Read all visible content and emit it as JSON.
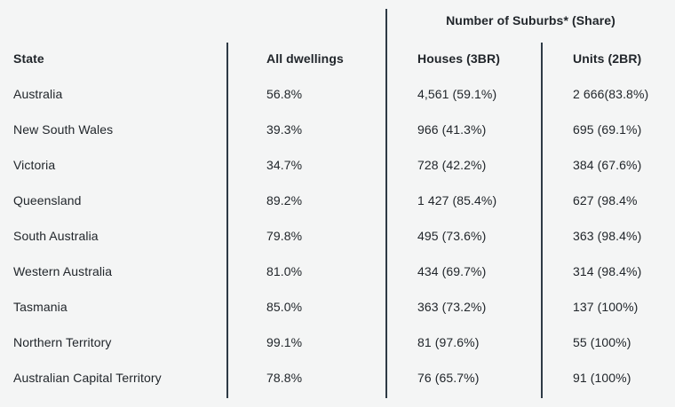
{
  "colors": {
    "background": "#f4f5f5",
    "text": "#21262b",
    "divider": "#2e3a45"
  },
  "chart_data": {
    "type": "table",
    "span_header": "Number of Suburbs* (Share)",
    "columns": [
      "State",
      "All dwellings",
      "Houses (3BR)",
      "Units (2BR)"
    ],
    "rows": [
      {
        "state": "Australia",
        "all_dwellings": "56.8%",
        "houses": "4,561 (59.1%)",
        "units": "2 666(83.8%)"
      },
      {
        "state": "New South Wales",
        "all_dwellings": "39.3%",
        "houses": "966 (41.3%)",
        "units": "695 (69.1%)"
      },
      {
        "state": "Victoria",
        "all_dwellings": "34.7%",
        "houses": "728 (42.2%)",
        "units": "384 (67.6%)"
      },
      {
        "state": "Queensland",
        "all_dwellings": "89.2%",
        "houses": "1 427 (85.4%)",
        "units": "627 (98.4%"
      },
      {
        "state": "South Australia",
        "all_dwellings": "79.8%",
        "houses": "495 (73.6%)",
        "units": "363 (98.4%)"
      },
      {
        "state": "Western Australia",
        "all_dwellings": "81.0%",
        "houses": "434 (69.7%)",
        "units": "314 (98.4%)"
      },
      {
        "state": "Tasmania",
        "all_dwellings": "85.0%",
        "houses": "363 (73.2%)",
        "units": "137 (100%)"
      },
      {
        "state": "Northern Territory",
        "all_dwellings": "99.1%",
        "houses": "81 (97.6%)",
        "units": "55 (100%)"
      },
      {
        "state": "Australian Capital Territory",
        "all_dwellings": "78.8%",
        "houses": "76 (65.7%)",
        "units": "91 (100%)"
      }
    ]
  }
}
